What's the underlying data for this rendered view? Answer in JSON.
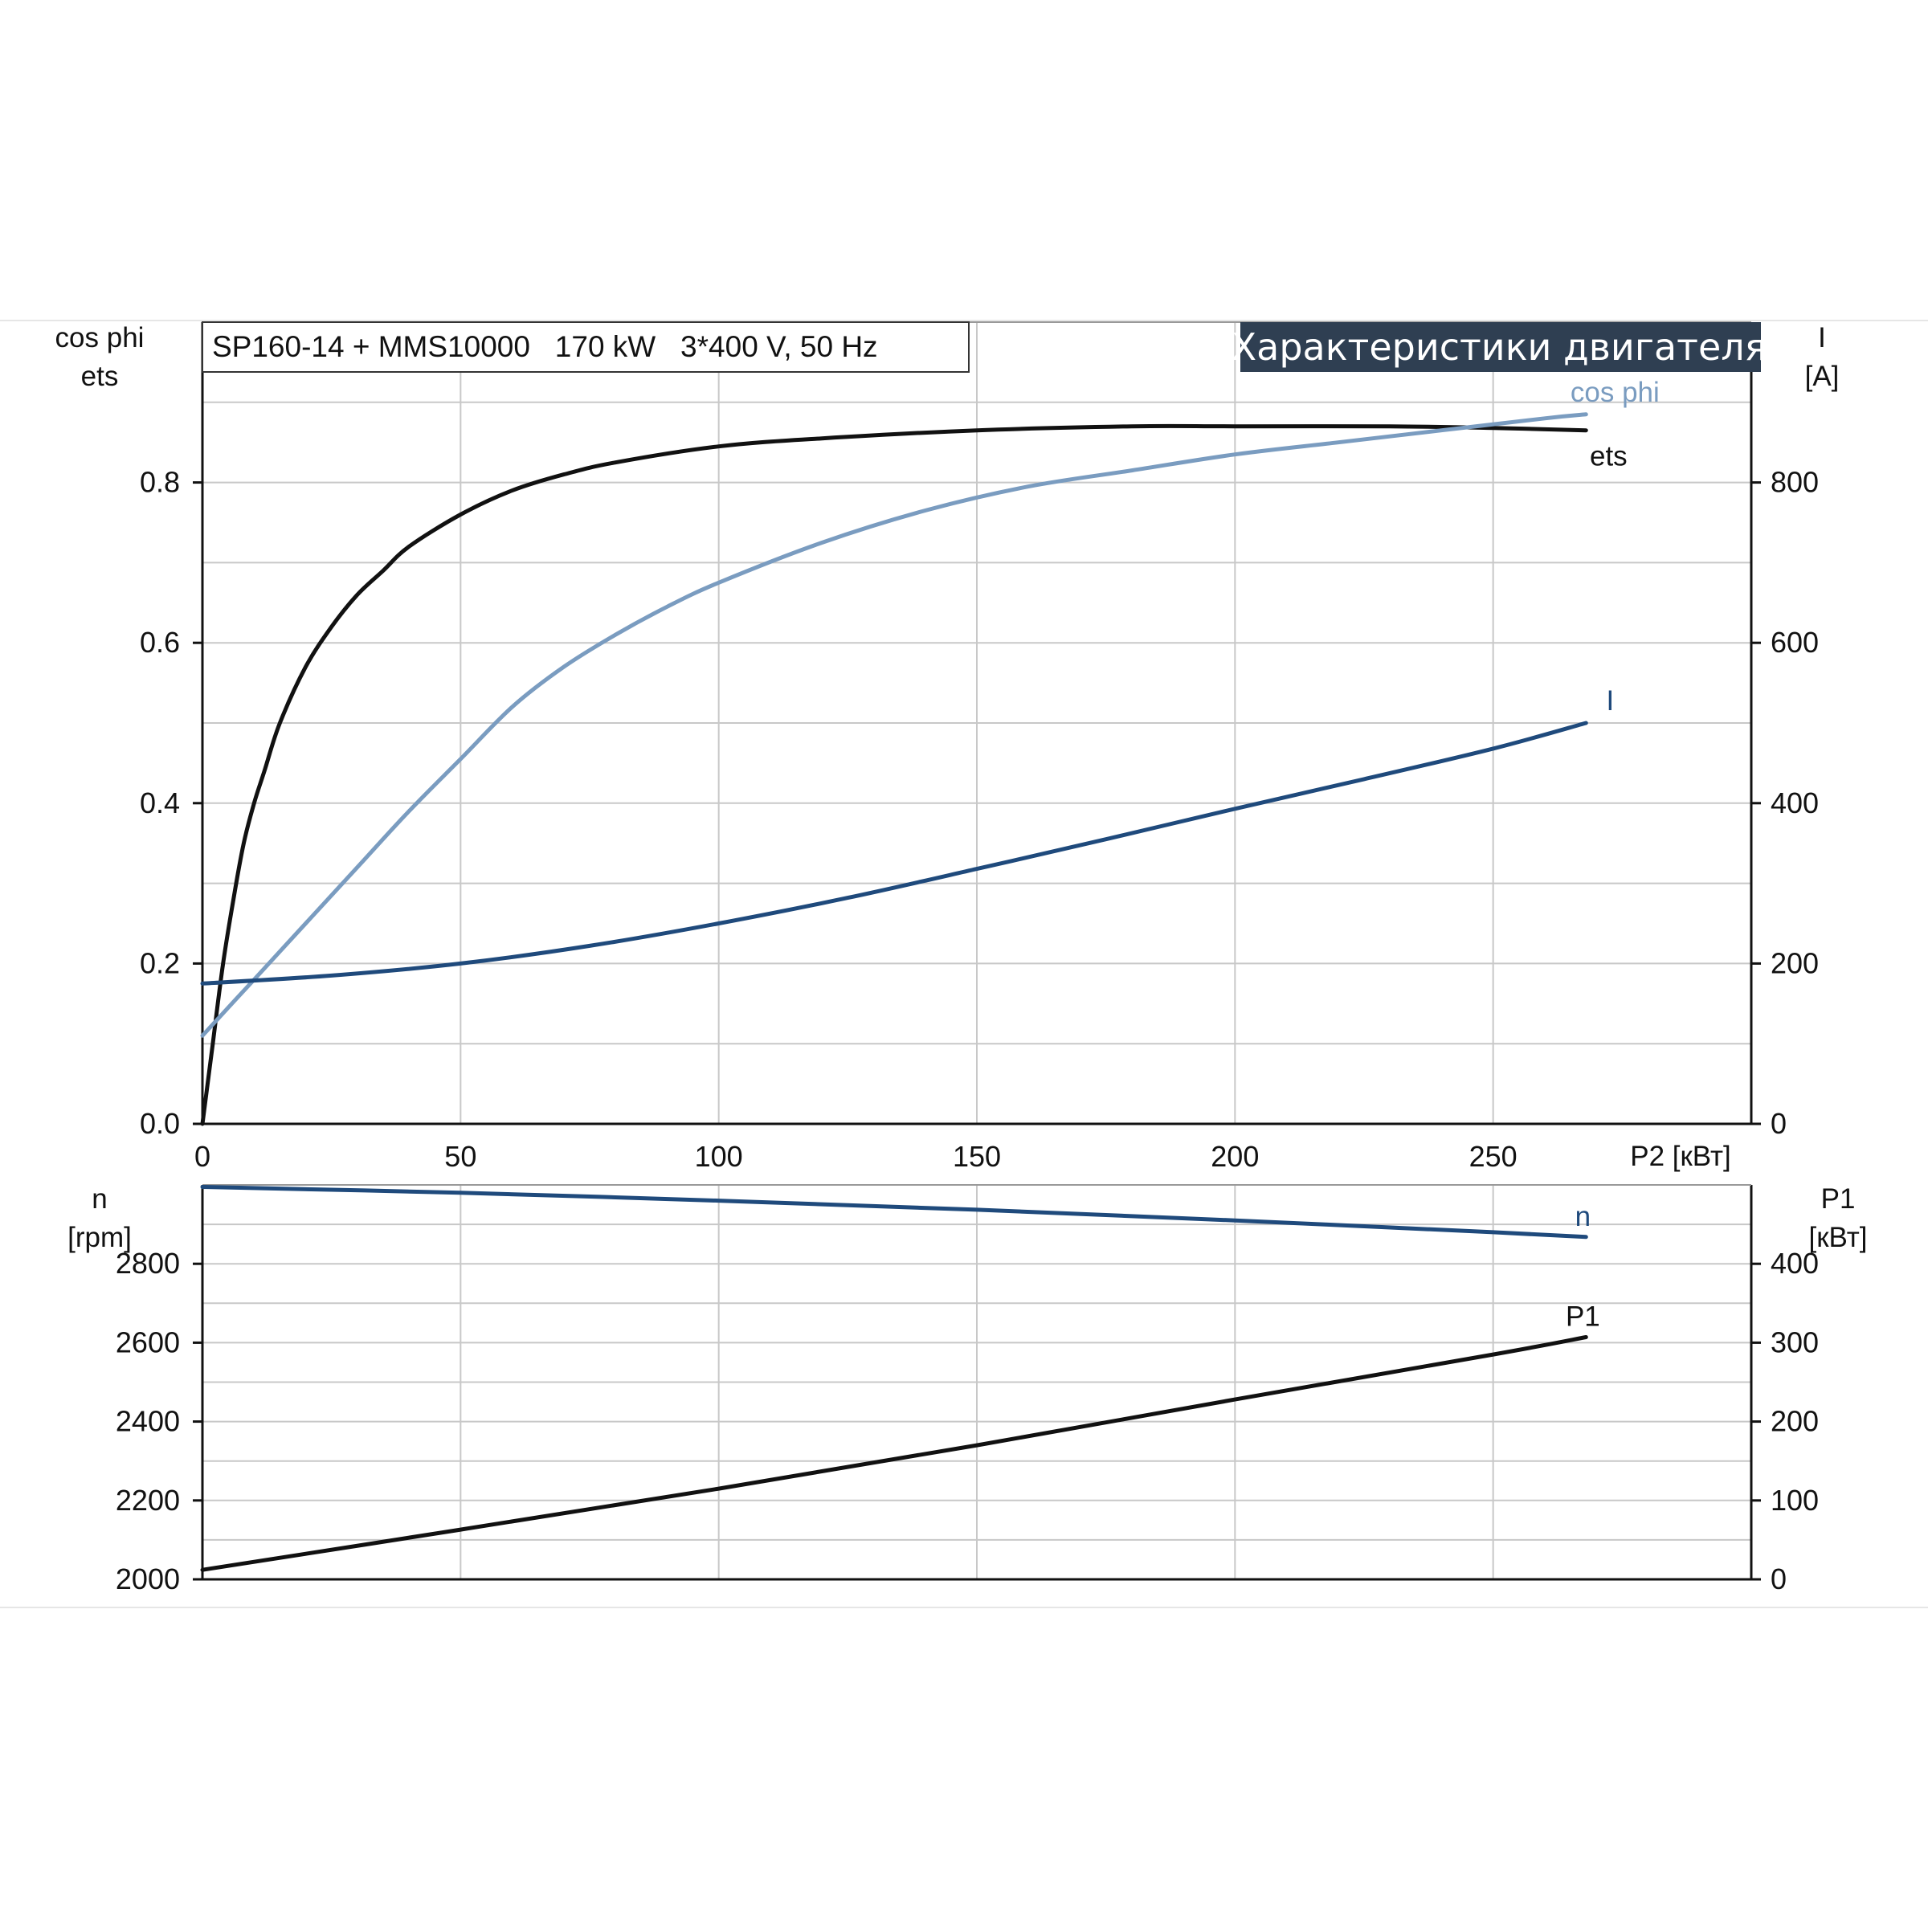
{
  "header": {
    "info": "SP160-14 + MMS10000   170 kW   3*400 V, 50 Hz",
    "title": "Характеристики двигателя"
  },
  "colors": {
    "background": "#ffffff",
    "grid": "#c8c8c8",
    "axis": "#111111",
    "title_bg": "#2f3f52",
    "ets": "#111111",
    "cosphi": "#7a9cc0",
    "current": "#1f4a7c",
    "speed": "#1f4a7c",
    "p1": "#111111"
  },
  "chart_data": [
    {
      "type": "line",
      "x_label": "P2 [кВт]",
      "x_range": [
        0,
        300
      ],
      "x_ticks": [
        0,
        50,
        100,
        150,
        200,
        250
      ],
      "left_axis": {
        "label_lines": [
          "cos phi",
          "ets"
        ],
        "range": [
          0,
          1.0
        ],
        "ticks": [
          0,
          0.2,
          0.4,
          0.6,
          0.8
        ],
        "tick_labels": [
          "0.0",
          "0.2",
          "0.4",
          "0.6",
          "0.8"
        ]
      },
      "right_axis": {
        "label_lines": [
          "I",
          "[A]"
        ],
        "range": [
          0,
          1000
        ],
        "ticks": [
          0,
          200,
          400,
          600,
          800
        ],
        "tick_labels": [
          "0",
          "200",
          "400",
          "600",
          "800"
        ]
      },
      "grid": true,
      "series": [
        {
          "name": "ets",
          "axis": "left",
          "color_key": "ets",
          "x": [
            0,
            2,
            4,
            6,
            8,
            10,
            12,
            15,
            20,
            25,
            30,
            35,
            40,
            50,
            60,
            70,
            80,
            100,
            120,
            150,
            180,
            200,
            230,
            250,
            268
          ],
          "y": [
            0,
            0.1,
            0.2,
            0.28,
            0.35,
            0.4,
            0.44,
            0.5,
            0.57,
            0.62,
            0.66,
            0.69,
            0.72,
            0.76,
            0.79,
            0.81,
            0.825,
            0.845,
            0.855,
            0.865,
            0.87,
            0.87,
            0.87,
            0.868,
            0.865
          ]
        },
        {
          "name": "cos phi",
          "axis": "left",
          "color_key": "cosphi",
          "x": [
            0,
            10,
            20,
            30,
            40,
            50,
            60,
            70,
            80,
            90,
            100,
            120,
            140,
            160,
            180,
            200,
            220,
            240,
            260,
            268
          ],
          "y": [
            0.11,
            0.18,
            0.25,
            0.32,
            0.39,
            0.455,
            0.52,
            0.57,
            0.61,
            0.645,
            0.675,
            0.725,
            0.765,
            0.795,
            0.815,
            0.835,
            0.85,
            0.865,
            0.88,
            0.885
          ]
        },
        {
          "name": "I",
          "axis": "right",
          "color_key": "current",
          "x": [
            0,
            25,
            50,
            75,
            100,
            125,
            150,
            175,
            200,
            225,
            250,
            268
          ],
          "y": [
            175,
            185,
            200,
            222,
            250,
            282,
            318,
            355,
            393,
            430,
            468,
            500
          ]
        }
      ]
    },
    {
      "type": "line",
      "x_range": [
        0,
        300
      ],
      "x_ticks": [
        0,
        50,
        100,
        150,
        200,
        250
      ],
      "left_axis": {
        "label_lines": [
          "n",
          "[rpm]"
        ],
        "range": [
          2000,
          3000
        ],
        "ticks": [
          2000,
          2200,
          2400,
          2600,
          2800
        ],
        "tick_labels": [
          "2000",
          "2200",
          "2400",
          "2600",
          "2800"
        ]
      },
      "right_axis": {
        "label_lines": [
          "P1",
          "[кВт]"
        ],
        "range": [
          0,
          500
        ],
        "ticks": [
          0,
          100,
          200,
          300,
          400
        ],
        "tick_labels": [
          "0",
          "100",
          "200",
          "300",
          "400"
        ]
      },
      "grid": true,
      "series": [
        {
          "name": "n",
          "axis": "left",
          "color_key": "speed",
          "x": [
            0,
            50,
            100,
            150,
            200,
            250,
            268
          ],
          "y": [
            2995,
            2980,
            2960,
            2937,
            2910,
            2880,
            2868
          ]
        },
        {
          "name": "P1",
          "axis": "right",
          "color_key": "p1",
          "x": [
            0,
            50,
            100,
            150,
            200,
            250,
            268
          ],
          "y": [
            12,
            63,
            115,
            170,
            228,
            285,
            307
          ]
        }
      ]
    }
  ]
}
